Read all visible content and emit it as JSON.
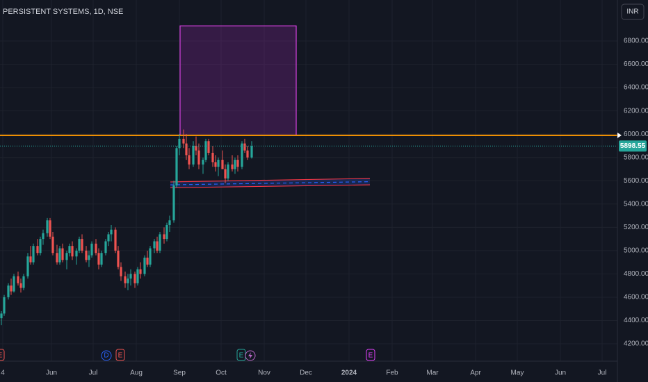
{
  "chart_data": {
    "type": "candlestick",
    "title": "PERSISTENT SYSTEMS, 1D, NSE",
    "currency": "INR",
    "up_color": "#26a69a",
    "down_color": "#ef5350",
    "x": [
      116,
      118,
      121,
      123,
      125,
      128,
      130,
      132,
      135,
      137,
      139,
      142,
      144,
      146,
      149,
      151,
      153,
      156,
      158,
      160,
      163,
      165,
      167,
      170,
      172,
      174,
      177,
      179,
      181,
      184,
      186,
      188,
      191,
      193,
      195,
      198,
      200,
      202,
      205,
      207,
      209,
      212,
      214,
      216,
      219,
      221,
      223,
      226,
      228,
      230,
      233,
      235,
      237,
      240,
      242,
      244,
      247,
      249,
      251,
      254,
      256,
      258,
      261,
      263,
      265,
      268,
      270,
      272,
      275,
      277,
      279,
      282,
      284,
      286,
      289,
      291,
      293,
      296
    ],
    "open": [
      4420,
      4460,
      4600,
      4700,
      4650,
      4780,
      4720,
      4680,
      4780,
      4950,
      4900,
      5040,
      4980,
      5100,
      5150,
      5260,
      5120,
      4980,
      4900,
      5020,
      4920,
      4980,
      5040,
      4950,
      5000,
      5100,
      5000,
      4920,
      4960,
      5060,
      4980,
      4880,
      4980,
      5080,
      5140,
      5180,
      5000,
      4860,
      4780,
      4720,
      4760,
      4800,
      4720,
      4840,
      4800,
      4940,
      4880,
      5020,
      5080,
      5000,
      5140,
      5100,
      5220,
      5260,
      5560,
      5880,
      5960,
      5920,
      5820,
      5740,
      5900,
      5860,
      5740,
      5780,
      5940,
      5840,
      5760,
      5720,
      5780,
      5700,
      5620,
      5740,
      5700,
      5780,
      5720,
      5920,
      5860,
      5800
    ],
    "high": [
      4480,
      4620,
      4720,
      4760,
      4800,
      4820,
      4760,
      4800,
      4980,
      5040,
      5060,
      5100,
      5120,
      5180,
      5280,
      5280,
      5160,
      5050,
      5040,
      5060,
      5000,
      5060,
      5080,
      5020,
      5120,
      5140,
      5040,
      5000,
      5080,
      5100,
      5020,
      5000,
      5100,
      5160,
      5220,
      5200,
      5040,
      4900,
      4820,
      4800,
      4840,
      4820,
      4860,
      4900,
      4960,
      5000,
      5040,
      5100,
      5120,
      5160,
      5200,
      5240,
      5300,
      5600,
      5900,
      6000,
      6040,
      6000,
      5880,
      5940,
      5980,
      5920,
      5800,
      5960,
      5960,
      5900,
      5820,
      5800,
      5860,
      5740,
      5760,
      5820,
      5800,
      5820,
      5940,
      5960,
      5900,
      5940
    ],
    "low": [
      4360,
      4440,
      4580,
      4620,
      4640,
      4700,
      4640,
      4660,
      4760,
      4880,
      4880,
      4960,
      4960,
      5050,
      5120,
      5100,
      4960,
      4880,
      4880,
      4900,
      4840,
      4950,
      4920,
      4880,
      4980,
      4980,
      4900,
      4860,
      4940,
      4960,
      4840,
      4860,
      4960,
      5040,
      5080,
      4980,
      4840,
      4740,
      4680,
      4660,
      4700,
      4680,
      4700,
      4760,
      4780,
      4860,
      4860,
      4980,
      4980,
      4980,
      5060,
      5080,
      5160,
      5240,
      5540,
      5820,
      5880,
      5780,
      5700,
      5720,
      5820,
      5700,
      5660,
      5760,
      5820,
      5720,
      5680,
      5640,
      5720,
      5580,
      5600,
      5680,
      5660,
      5680,
      5700,
      5840,
      5780,
      5790
    ],
    "close": [
      4460,
      4600,
      4700,
      4650,
      4780,
      4720,
      4680,
      4780,
      4950,
      4900,
      5040,
      4980,
      5100,
      5150,
      5260,
      5120,
      4980,
      4900,
      5020,
      4920,
      4980,
      5040,
      4950,
      5000,
      5100,
      5000,
      4920,
      4960,
      5060,
      4980,
      4880,
      4980,
      5080,
      5140,
      5180,
      5000,
      4860,
      4780,
      4720,
      4760,
      4800,
      4720,
      4840,
      4800,
      4940,
      4880,
      5020,
      5080,
      5000,
      5140,
      5100,
      5220,
      5260,
      5560,
      5880,
      5960,
      5920,
      5820,
      5740,
      5900,
      5860,
      5740,
      5780,
      5940,
      5840,
      5760,
      5720,
      5780,
      5700,
      5620,
      5740,
      5700,
      5780,
      5720,
      5920,
      5860,
      5800,
      5898.55
    ],
    "xlim": [
      115,
      559
    ],
    "ylim": [
      4051,
      7152
    ],
    "xticks": [
      {
        "value": 117,
        "label": "4"
      },
      {
        "value": 152,
        "label": "Jun"
      },
      {
        "value": 182,
        "label": "Jul"
      },
      {
        "value": 213,
        "label": "Aug"
      },
      {
        "value": 244,
        "label": "Sep"
      },
      {
        "value": 274,
        "label": "Oct"
      },
      {
        "value": 305,
        "label": "Nov"
      },
      {
        "value": 335,
        "label": "Dec"
      },
      {
        "value": 366,
        "label": "2024"
      },
      {
        "value": 397,
        "label": "Feb"
      },
      {
        "value": 426,
        "label": "Mar"
      },
      {
        "value": 457,
        "label": "Apr"
      },
      {
        "value": 487,
        "label": "May"
      },
      {
        "value": 518,
        "label": "Jun"
      },
      {
        "value": 548,
        "label": "Jul"
      }
    ],
    "yticks": [
      {
        "value": 4200,
        "label": "4200.00"
      },
      {
        "value": 4400,
        "label": "4400.00"
      },
      {
        "value": 4600,
        "label": "4600.00"
      },
      {
        "value": 4800,
        "label": "4800.00"
      },
      {
        "value": 5000,
        "label": "5000.00"
      },
      {
        "value": 5200,
        "label": "5200.00"
      },
      {
        "value": 5400,
        "label": "5400.00"
      },
      {
        "value": 5600,
        "label": "5600.00"
      },
      {
        "value": 5800,
        "label": "5800.00"
      },
      {
        "value": 6000,
        "label": "6000.00"
      },
      {
        "value": 6200,
        "label": "6200.00"
      },
      {
        "value": 6400,
        "label": "6400.00"
      },
      {
        "value": 6600,
        "label": "6600.00"
      },
      {
        "value": 6800,
        "label": "6800.00"
      }
    ],
    "grid": true,
    "hline": {
      "value": 5990,
      "color": "#ff9800"
    },
    "box": {
      "x": [
        244.5,
        328
      ],
      "y": [
        5990,
        6930
      ],
      "color": "#9c27b0"
    },
    "channel": {
      "x": [
        237.5,
        381
      ],
      "upper": [
        5590,
        5620
      ],
      "middle": [
        5565,
        5592
      ],
      "lower": [
        5540,
        5565
      ]
    },
    "events": [
      "E",
      "D",
      "E",
      "E",
      "E"
    ]
  }
}
